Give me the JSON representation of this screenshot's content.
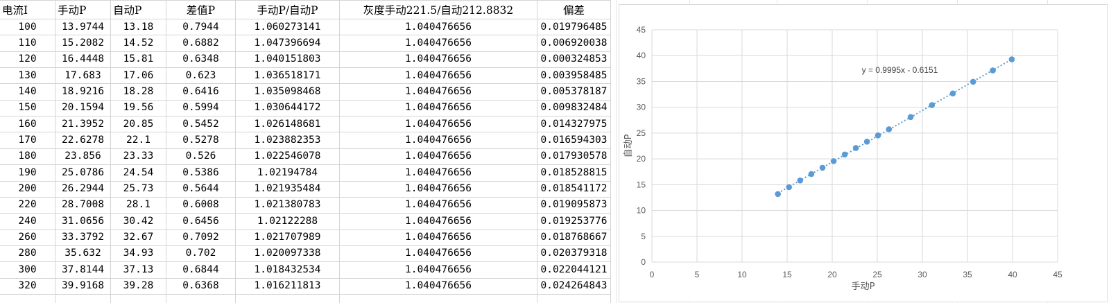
{
  "table": {
    "headers": [
      "电流I",
      "手动P",
      "自动P",
      "差值P",
      "手动P/自动P",
      "灰度手动221.5/自动212.8832",
      "偏差"
    ],
    "rows": [
      [
        "100",
        "13.9744",
        "13.18",
        "0.7944",
        "1.060273141",
        "1.040476656",
        "0.019796485"
      ],
      [
        "110",
        "15.2082",
        "14.52",
        "0.6882",
        "1.047396694",
        "1.040476656",
        "0.00692003​8"
      ],
      [
        "120",
        "16.4448",
        "15.81",
        "0.6348",
        "1.040151803",
        "1.040476656",
        "0.000324853"
      ],
      [
        "130",
        "17.683",
        "17.06",
        "0.623",
        "1.036518171",
        "1.040476656",
        "0.003958485"
      ],
      [
        "140",
        "18.9216",
        "18.28",
        "0.6416",
        "1.035098468",
        "1.040476656",
        "0.005378187"
      ],
      [
        "150",
        "20.1594",
        "19.56",
        "0.5994",
        "1.030644172",
        "1.040476656",
        "0.009832484"
      ],
      [
        "160",
        "21.3952",
        "20.85",
        "0.5452",
        "1.026148681",
        "1.040476656",
        "0.014327975"
      ],
      [
        "170",
        "22.6278",
        "22.1",
        "0.5278",
        "1.023882353",
        "1.040476656",
        "0.016594303"
      ],
      [
        "180",
        "23.856",
        "23.33",
        "0.526",
        "1.022546078",
        "1.040476656",
        "0.017930578"
      ],
      [
        "190",
        "25.0786",
        "24.54",
        "0.5386",
        "1.02194784",
        "1.040476656",
        "0.018528815"
      ],
      [
        "200",
        "26.2944",
        "25.73",
        "0.5644",
        "1.021935484",
        "1.040476656",
        "0.018541172"
      ],
      [
        "220",
        "28.7008",
        "28.1",
        "0.6008",
        "1.021380783",
        "1.040476656",
        "0.019095873"
      ],
      [
        "240",
        "31.0656",
        "30.42",
        "0.6456",
        "1.02122288",
        "1.040476656",
        "0.019253776"
      ],
      [
        "260",
        "33.3792",
        "32.67",
        "0.7092",
        "1.021707989",
        "1.040476656",
        "0.018768667"
      ],
      [
        "280",
        "35.632",
        "34.93",
        "0.702",
        "1.020097338",
        "1.040476656",
        "0.020379318"
      ],
      [
        "300",
        "37.8144",
        "37.13",
        "0.6844",
        "1.018432534",
        "1.040476656",
        "0.022044121"
      ],
      [
        "320",
        "39.9168",
        "39.28",
        "0.6368",
        "1.016211813",
        "1.040476656",
        "0.024264843"
      ]
    ]
  },
  "chart_data": {
    "type": "scatter",
    "xlabel": "手动P",
    "ylabel": "自动P",
    "xlim": [
      0,
      45
    ],
    "ylim": [
      0,
      45
    ],
    "xticks": [
      "0",
      "5",
      "10",
      "15",
      "20",
      "25",
      "30",
      "35",
      "40",
      "45"
    ],
    "yticks": [
      "0",
      "5",
      "10",
      "15",
      "20",
      "25",
      "30",
      "35",
      "40",
      "45"
    ],
    "grid": true,
    "point_color": "#5b9bd5",
    "trendline": {
      "slope": 0.9995,
      "intercept": -0.6151,
      "style": "dotted",
      "label": "y = 0.9995x - 0.6151"
    },
    "x": [
      13.9744,
      15.2082,
      16.4448,
      17.683,
      18.9216,
      20.1594,
      21.3952,
      22.6278,
      23.856,
      25.0786,
      26.2944,
      28.7008,
      31.0656,
      33.3792,
      35.632,
      37.8144,
      39.9168
    ],
    "y": [
      13.18,
      14.52,
      15.81,
      17.06,
      18.28,
      19.56,
      20.85,
      22.1,
      23.33,
      24.54,
      25.73,
      28.1,
      30.42,
      32.67,
      34.93,
      37.13,
      39.28
    ]
  }
}
